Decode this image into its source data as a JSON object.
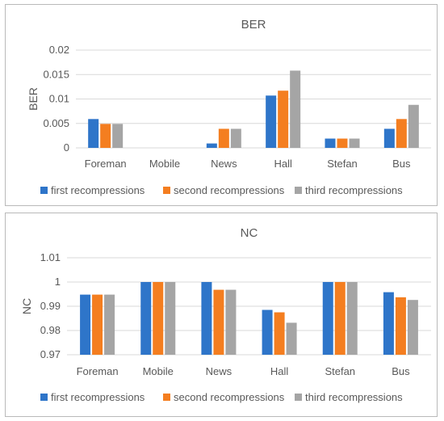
{
  "colors": {
    "first": "#2e75c9",
    "second": "#f47e20",
    "third": "#a5a5a5"
  },
  "chart_data": [
    {
      "type": "bar",
      "title": "BER",
      "ylabel": "BER",
      "xlabel": "",
      "categories": [
        "Foreman",
        "Mobile",
        "News",
        "Hall",
        "Stefan",
        "Bus"
      ],
      "ylim": [
        0,
        0.02
      ],
      "yticks": [
        "0",
        "0.005",
        "0.01",
        "0.015",
        "0.02"
      ],
      "grid": true,
      "legend": "bottom",
      "series": [
        {
          "name": "first recompressions",
          "values": [
            0.0059,
            0,
            0.0009,
            0.0107,
            0.0019,
            0.0039
          ]
        },
        {
          "name": "second recompressions",
          "values": [
            0.0049,
            0,
            0.0039,
            0.0117,
            0.0019,
            0.0059
          ]
        },
        {
          "name": "third recompressions",
          "values": [
            0.0049,
            0,
            0.0039,
            0.0158,
            0.0019,
            0.0088
          ]
        }
      ]
    },
    {
      "type": "bar",
      "title": "NC",
      "ylabel": "NC",
      "xlabel": "",
      "categories": [
        "Foreman",
        "Mobile",
        "News",
        "Hall",
        "Stefan",
        "Bus"
      ],
      "ylim": [
        0.97,
        1.01
      ],
      "yticks": [
        "0.97",
        "0.98",
        "0.99",
        "1",
        "1.01"
      ],
      "grid": true,
      "legend": "bottom",
      "series": [
        {
          "name": "first recompressions",
          "values": [
            0.9948,
            1.0,
            1.0,
            0.9885,
            1.0,
            0.9958
          ]
        },
        {
          "name": "second recompressions",
          "values": [
            0.9948,
            1.0,
            0.9968,
            0.9875,
            1.0,
            0.9937
          ]
        },
        {
          "name": "third recompressions",
          "values": [
            0.9948,
            1.0,
            0.9968,
            0.9832,
            1.0,
            0.9926
          ]
        }
      ]
    }
  ]
}
